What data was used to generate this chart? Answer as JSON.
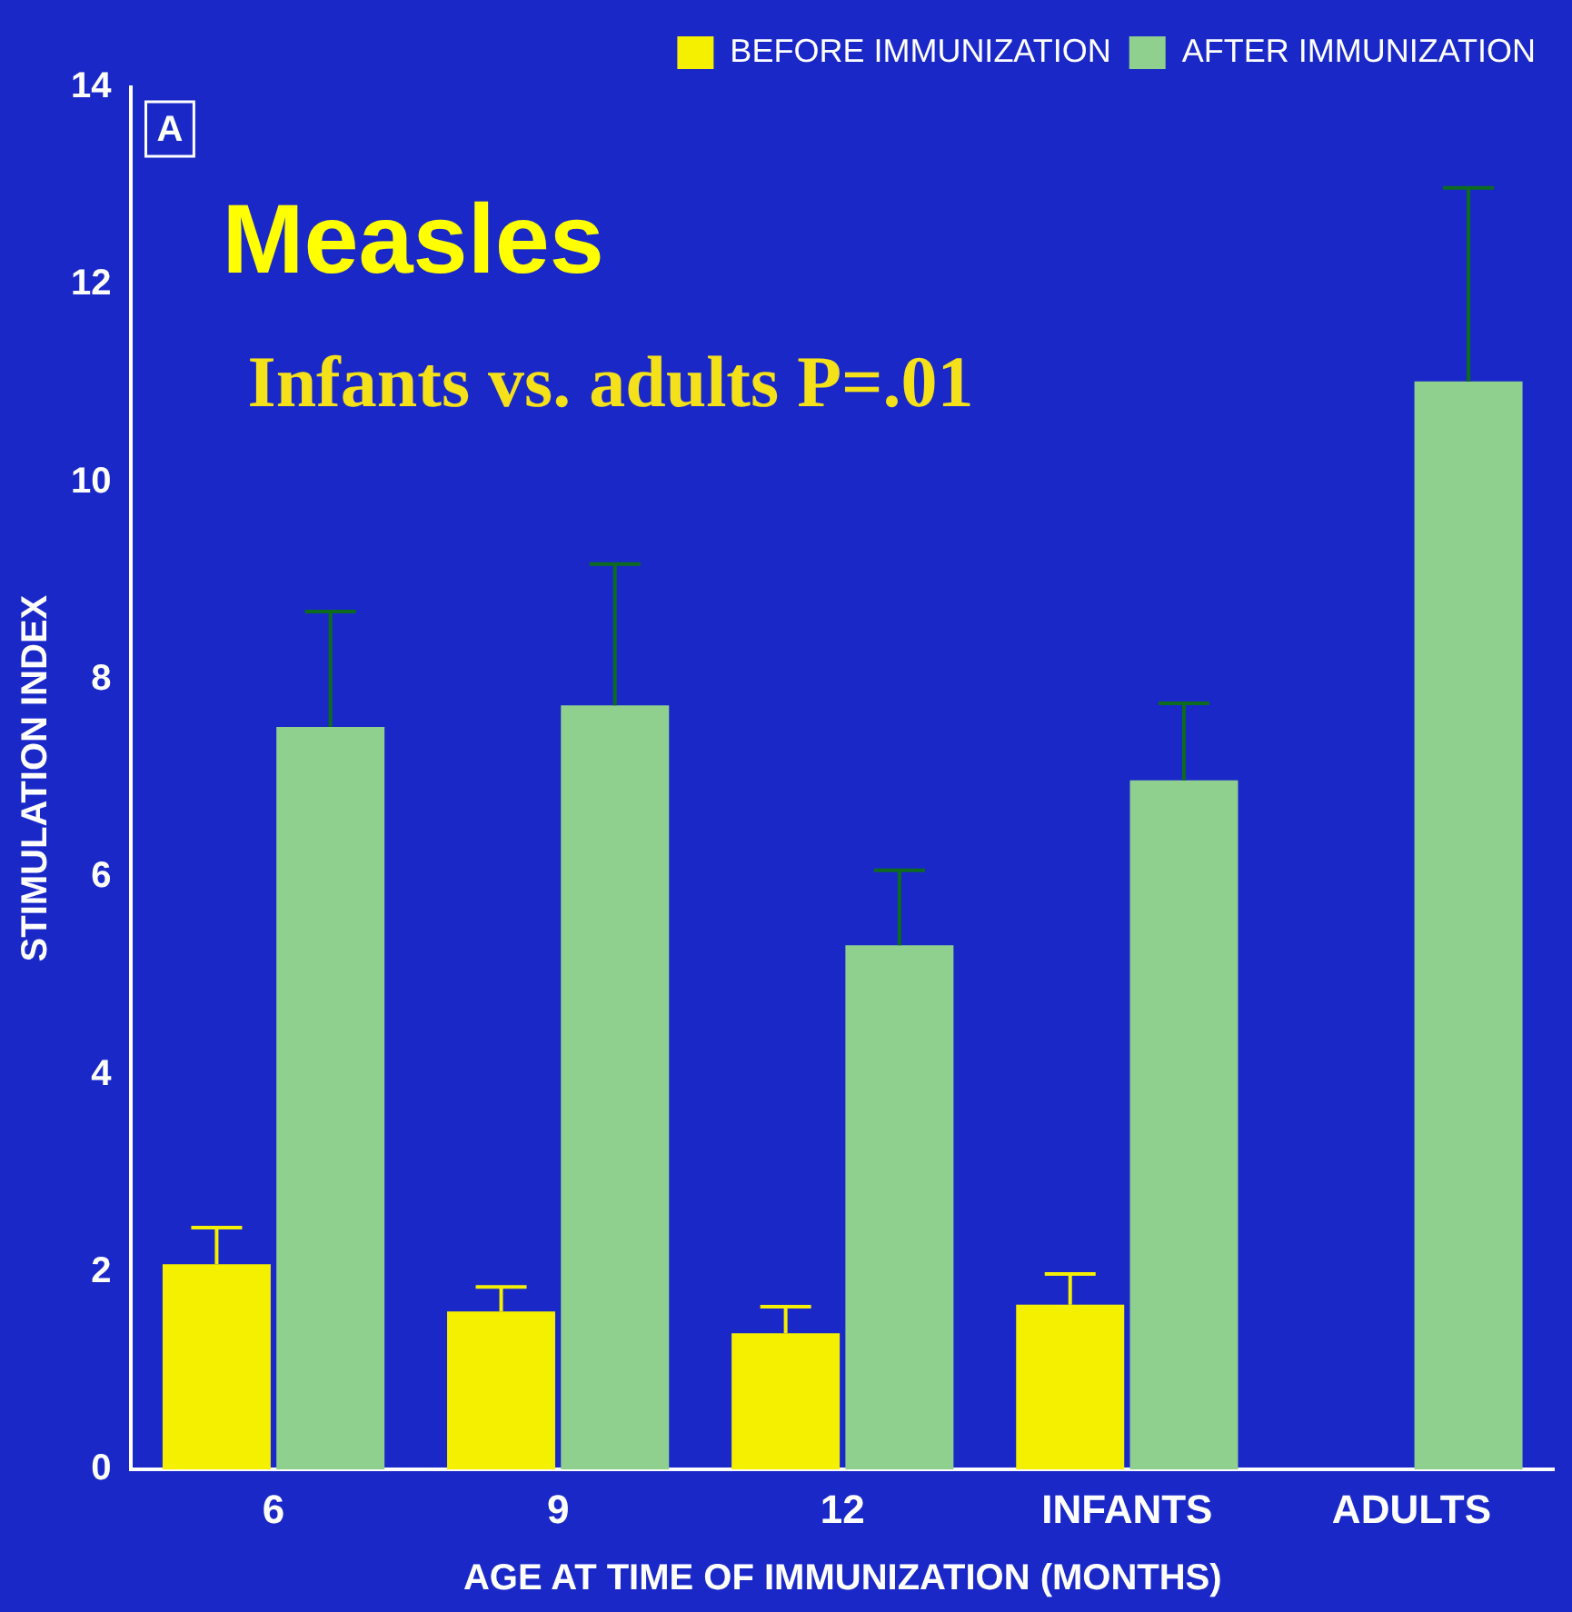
{
  "chart_data": {
    "type": "bar",
    "xlabel": "AGE AT TIME OF IMMUNIZATION (MONTHS)",
    "ylabel": "STIMULATION INDEX",
    "annotations": [
      "A",
      "Measles",
      "Infants vs. adults P=.01"
    ],
    "categories": [
      "6",
      "9",
      "12",
      "INFANTS",
      "ADULTS"
    ],
    "series": [
      {
        "name": "BEFORE IMMUNIZATION",
        "color": "#f5ef00",
        "values": [
          2.08,
          1.6,
          1.38,
          1.67,
          0
        ],
        "errors": [
          [
            2.08,
            2.45
          ],
          [
            1.6,
            1.85
          ],
          [
            1.38,
            1.65
          ],
          [
            1.67,
            1.98
          ],
          null
        ]
      },
      {
        "name": "AFTER IMMUNIZATION",
        "color": "#8fd08f",
        "values": [
          7.52,
          7.74,
          5.31,
          6.98,
          11.02
        ],
        "errors": [
          [
            7.52,
            8.69
          ],
          [
            7.74,
            9.17
          ],
          [
            5.31,
            6.07
          ],
          [
            6.98,
            7.76
          ],
          [
            11.02,
            12.98
          ]
        ]
      }
    ],
    "ylim": [
      0,
      14
    ],
    "yticks": [
      0,
      2,
      4,
      6,
      8,
      10,
      12,
      14
    ],
    "grid": false,
    "legend": "top right"
  }
}
